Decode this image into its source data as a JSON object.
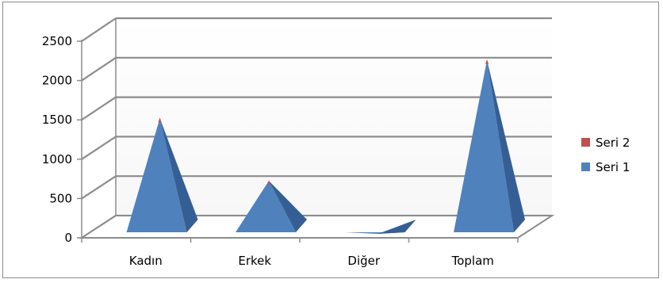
{
  "chart_data": {
    "type": "bar",
    "style": "3d-pyramid",
    "categories": [
      "Kadın",
      "Erkek",
      "Diğer",
      "Toplam"
    ],
    "yticks": [
      "0",
      "500",
      "1000",
      "1500",
      "2000",
      "2500"
    ],
    "ylim": [
      0,
      2500
    ],
    "grid": true,
    "legend_position": "right",
    "series": [
      {
        "name": "Seri 1",
        "color": "#4f81bd",
        "values": [
          1490,
          700,
          30,
          2220
        ]
      },
      {
        "name": "Seri 2",
        "color": "#c0504d",
        "values": [
          10,
          5,
          0,
          20
        ]
      }
    ]
  }
}
